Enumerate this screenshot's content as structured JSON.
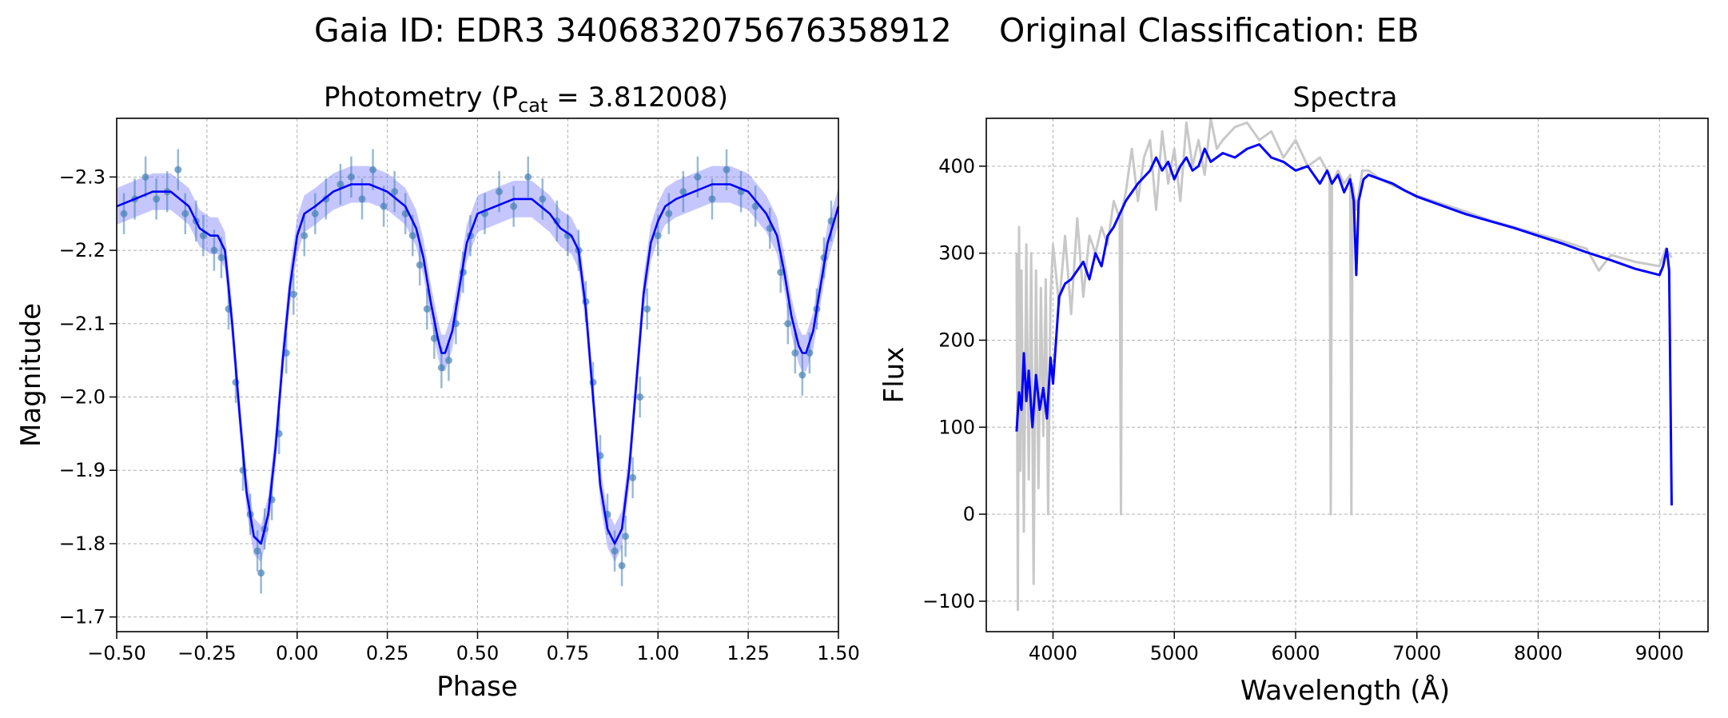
{
  "figure": {
    "gaia_id_text": "Gaia ID: EDR3 3406832075676358912",
    "classification_text": "Original Classification: EB"
  },
  "colors": {
    "photometry_points": "#4682b4",
    "photometry_fit": "#0000ff",
    "photometry_band": "#8080ff",
    "spectrum_observed": "#c8c8c8",
    "spectrum_model": "#0000ff",
    "grid": "#b0b0b0"
  },
  "chart_data": [
    {
      "type": "scatter",
      "title_prefix": "Photometry (P",
      "title_sub": "cat",
      "title_suffix": " = 3.812008)",
      "xlabel": "Phase",
      "ylabel": "Magnitude",
      "xlim": [
        -0.5,
        1.5
      ],
      "ylim": [
        -2.38,
        -1.68
      ],
      "y_inverted": true,
      "xticks": [
        -0.5,
        -0.25,
        0.0,
        0.25,
        0.5,
        0.75,
        1.0,
        1.25,
        1.5
      ],
      "xtick_labels": [
        "−0.50",
        "−0.25",
        "0.00",
        "0.25",
        "0.50",
        "0.75",
        "1.00",
        "1.25",
        "1.50"
      ],
      "yticks": [
        -2.3,
        -2.2,
        -2.1,
        -2.0,
        -1.9,
        -1.8,
        -1.7
      ],
      "ytick_labels": [
        "−2.3",
        "−2.2",
        "−2.1",
        "−2.0",
        "−1.9",
        "−1.8",
        "−1.7"
      ],
      "grid": true,
      "series": [
        {
          "kind": "fit",
          "x": [
            -0.5,
            -0.45,
            -0.4,
            -0.35,
            -0.3,
            -0.27,
            -0.24,
            -0.22,
            -0.2,
            -0.18,
            -0.16,
            -0.14,
            -0.12,
            -0.1,
            -0.08,
            -0.06,
            -0.04,
            -0.02,
            0.0,
            0.02,
            0.05,
            0.1,
            0.15,
            0.2,
            0.25,
            0.3,
            0.33,
            0.35,
            0.37,
            0.39,
            0.4,
            0.41,
            0.43,
            0.45,
            0.47,
            0.5,
            0.55,
            0.6,
            0.65,
            0.7,
            0.73,
            0.76,
            0.78,
            0.8,
            0.82,
            0.84,
            0.86,
            0.88,
            0.9,
            0.92,
            0.94,
            0.96,
            0.98,
            1.0,
            1.02,
            1.05,
            1.1,
            1.15,
            1.2,
            1.25,
            1.3,
            1.33,
            1.35,
            1.37,
            1.39,
            1.4,
            1.41,
            1.43,
            1.45,
            1.47,
            1.5
          ],
          "y": [
            -2.26,
            -2.27,
            -2.28,
            -2.28,
            -2.26,
            -2.23,
            -2.22,
            -2.22,
            -2.2,
            -2.1,
            -1.98,
            -1.87,
            -1.81,
            -1.8,
            -1.84,
            -1.93,
            -2.05,
            -2.15,
            -2.22,
            -2.25,
            -2.26,
            -2.28,
            -2.29,
            -2.29,
            -2.28,
            -2.26,
            -2.23,
            -2.19,
            -2.13,
            -2.08,
            -2.06,
            -2.06,
            -2.09,
            -2.15,
            -2.21,
            -2.25,
            -2.26,
            -2.27,
            -2.27,
            -2.25,
            -2.23,
            -2.22,
            -2.2,
            -2.12,
            -2.0,
            -1.88,
            -1.82,
            -1.8,
            -1.82,
            -1.9,
            -2.02,
            -2.14,
            -2.21,
            -2.24,
            -2.26,
            -2.27,
            -2.28,
            -2.29,
            -2.29,
            -2.28,
            -2.25,
            -2.22,
            -2.17,
            -2.11,
            -2.07,
            -2.06,
            -2.06,
            -2.09,
            -2.15,
            -2.21,
            -2.26
          ]
        },
        {
          "kind": "points",
          "phase_order": [
            -0.48,
            -0.45,
            -0.42,
            -0.39,
            -0.36,
            -0.33,
            -0.31,
            -0.28,
            -0.26,
            -0.23,
            -0.21,
            -0.19,
            -0.17,
            -0.15,
            -0.13,
            -0.11,
            -0.1,
            -0.09,
            -0.07,
            -0.05,
            -0.03,
            -0.01,
            0.02,
            0.05,
            0.08,
            0.12,
            0.15,
            0.18,
            0.21,
            0.24,
            0.27,
            0.3,
            0.32,
            0.34,
            0.36,
            0.38,
            0.4,
            0.42,
            0.44,
            0.46,
            0.48,
            0.52,
            0.56,
            0.6,
            0.64,
            0.68,
            0.72,
            0.75,
            0.78,
            0.8,
            0.82,
            0.84,
            0.86,
            0.88,
            0.9,
            0.91,
            0.93,
            0.95,
            0.97,
            1.0,
            1.03,
            1.07,
            1.11,
            1.15,
            1.19,
            1.23,
            1.27,
            1.31,
            1.34,
            1.36,
            1.38,
            1.4,
            1.42,
            1.44,
            1.46,
            1.48
          ],
          "magnitude": [
            -2.25,
            -2.27,
            -2.3,
            -2.27,
            -2.28,
            -2.31,
            -2.25,
            -2.24,
            -2.22,
            -2.2,
            -2.19,
            -2.12,
            -2.02,
            -1.9,
            -1.84,
            -1.79,
            -1.76,
            -1.82,
            -1.86,
            -1.95,
            -2.06,
            -2.14,
            -2.22,
            -2.25,
            -2.27,
            -2.29,
            -2.3,
            -2.27,
            -2.31,
            -2.26,
            -2.28,
            -2.25,
            -2.22,
            -2.18,
            -2.12,
            -2.08,
            -2.04,
            -2.05,
            -2.1,
            -2.17,
            -2.22,
            -2.25,
            -2.28,
            -2.26,
            -2.3,
            -2.27,
            -2.24,
            -2.22,
            -2.2,
            -2.13,
            -2.02,
            -1.92,
            -1.84,
            -1.79,
            -1.77,
            -1.81,
            -1.89,
            -2.0,
            -2.12,
            -2.22,
            -2.25,
            -2.28,
            -2.3,
            -2.27,
            -2.31,
            -2.28,
            -2.26,
            -2.23,
            -2.17,
            -2.1,
            -2.06,
            -2.03,
            -2.06,
            -2.12,
            -2.19,
            -2.24
          ]
        }
      ]
    },
    {
      "type": "line",
      "title": "Spectra",
      "xlabel": "Wavelength (Å)",
      "ylabel": "Flux",
      "xlim": [
        3450,
        9400
      ],
      "ylim": [
        -135,
        455
      ],
      "xticks": [
        4000,
        5000,
        6000,
        7000,
        8000,
        9000
      ],
      "xtick_labels": [
        "4000",
        "5000",
        "6000",
        "7000",
        "8000",
        "9000"
      ],
      "yticks": [
        -100,
        0,
        100,
        200,
        300,
        400
      ],
      "ytick_labels": [
        "−100",
        "0",
        "100",
        "200",
        "300",
        "400"
      ],
      "grid": true,
      "series": [
        {
          "kind": "model",
          "x": [
            3700,
            3720,
            3740,
            3760,
            3780,
            3800,
            3830,
            3860,
            3890,
            3920,
            3950,
            3980,
            4000,
            4050,
            4100,
            4150,
            4200,
            4250,
            4300,
            4350,
            4400,
            4450,
            4500,
            4600,
            4700,
            4800,
            4850,
            4900,
            4950,
            5000,
            5050,
            5100,
            5150,
            5200,
            5250,
            5300,
            5400,
            5500,
            5600,
            5700,
            5800,
            5900,
            6000,
            6100,
            6200,
            6260,
            6300,
            6350,
            6400,
            6450,
            6480,
            6500,
            6520,
            6560,
            6600,
            6700,
            6800,
            6900,
            7000,
            7200,
            7400,
            7600,
            7800,
            8000,
            8200,
            8400,
            8600,
            8800,
            9000,
            9030,
            9060,
            9080,
            9100
          ],
          "y": [
            95,
            140,
            120,
            185,
            130,
            165,
            100,
            160,
            120,
            145,
            110,
            180,
            150,
            250,
            265,
            270,
            280,
            290,
            270,
            300,
            285,
            320,
            330,
            360,
            380,
            395,
            410,
            395,
            405,
            385,
            400,
            410,
            395,
            400,
            420,
            405,
            415,
            410,
            420,
            425,
            410,
            405,
            395,
            400,
            380,
            395,
            380,
            390,
            370,
            385,
            360,
            275,
            360,
            385,
            390,
            385,
            380,
            372,
            365,
            355,
            345,
            337,
            329,
            320,
            311,
            301,
            292,
            282,
            275,
            285,
            305,
            280,
            10
          ]
        },
        {
          "kind": "observed",
          "x": [
            3700,
            3710,
            3720,
            3730,
            3740,
            3760,
            3780,
            3800,
            3820,
            3840,
            3860,
            3880,
            3900,
            3920,
            3940,
            3960,
            3980,
            4000,
            4050,
            4100,
            4150,
            4200,
            4250,
            4300,
            4350,
            4400,
            4450,
            4500,
            4550,
            4560,
            4570,
            4600,
            4650,
            4700,
            4750,
            4800,
            4850,
            4900,
            4950,
            5000,
            5050,
            5100,
            5150,
            5200,
            5250,
            5300,
            5350,
            5400,
            5500,
            5600,
            5700,
            5800,
            5900,
            6000,
            6100,
            6200,
            6280,
            6290,
            6300,
            6350,
            6400,
            6450,
            6460,
            6470,
            6500,
            6550,
            6600,
            6700,
            6800,
            6900,
            7000,
            7200,
            7400,
            7600,
            7800,
            8000,
            8200,
            8400,
            8500,
            8600,
            8800,
            9000,
            9050,
            9100
          ],
          "y": [
            300,
            -110,
            330,
            50,
            280,
            -20,
            310,
            40,
            300,
            -80,
            280,
            30,
            260,
            90,
            270,
            0,
            250,
            310,
            240,
            320,
            230,
            340,
            250,
            320,
            300,
            330,
            310,
            360,
            340,
            0,
            350,
            370,
            420,
            360,
            410,
            430,
            350,
            440,
            380,
            420,
            360,
            450,
            400,
            430,
            390,
            455,
            420,
            430,
            445,
            450,
            430,
            440,
            410,
            430,
            400,
            410,
            390,
            0,
            380,
            395,
            380,
            390,
            0,
            380,
            350,
            395,
            395,
            385,
            378,
            372,
            366,
            357,
            348,
            338,
            330,
            322,
            314,
            305,
            280,
            298,
            290,
            285,
            305,
            295
          ]
        }
      ]
    }
  ]
}
